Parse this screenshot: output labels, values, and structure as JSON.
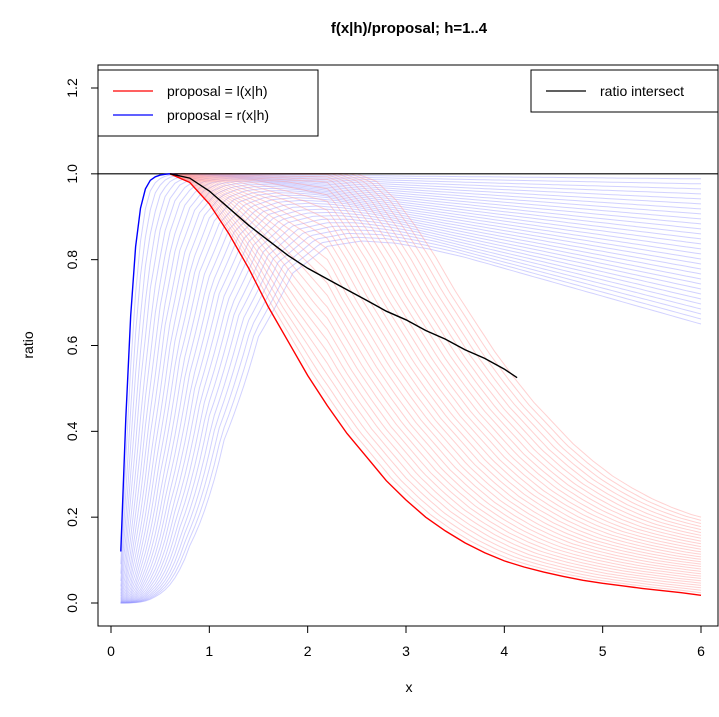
{
  "chart_data": {
    "type": "line",
    "title": "f(x|h)/proposal; h=1..4",
    "xlabel": "x",
    "ylabel": "ratio",
    "xlim": [
      0,
      6
    ],
    "ylim": [
      0,
      1.2
    ],
    "x_ticks": [
      "0",
      "1",
      "2",
      "3",
      "4",
      "5",
      "6"
    ],
    "y_ticks": [
      "0.0",
      "0.2",
      "0.4",
      "0.6",
      "0.8",
      "1.0",
      "1.2"
    ],
    "reference_line_y": 1.0,
    "legend_left": [
      {
        "label": "proposal = l(x|h)",
        "color": "#ff0000"
      },
      {
        "label": "proposal = r(x|h)",
        "color": "#0000ff"
      }
    ],
    "legend_right": [
      {
        "label": "ratio intersect",
        "color": "#000000"
      }
    ],
    "colors": {
      "l_main": "#ff0000",
      "r_main": "#0000ff",
      "l_faint": "#ff9999",
      "r_faint": "#9999ff",
      "intersect": "#000000"
    },
    "series": [
      {
        "name": "proposal = r(x|h)",
        "x": [
          0.1,
          0.15,
          0.2,
          0.25,
          0.3,
          0.35,
          0.4,
          0.45,
          0.5,
          0.55,
          0.6,
          0.65,
          0.7
        ],
        "y": [
          0.12,
          0.43,
          0.67,
          0.83,
          0.92,
          0.965,
          0.985,
          0.993,
          0.997,
          0.999,
          1.0,
          0.998,
          0.995
        ]
      },
      {
        "name": "proposal = l(x|h)",
        "x": [
          0.6,
          0.8,
          1.0,
          1.2,
          1.4,
          1.6,
          1.8,
          2.0,
          2.2,
          2.4,
          2.6,
          2.8,
          3.0,
          3.2,
          3.4,
          3.6,
          3.8,
          4.0,
          4.2,
          4.4,
          4.6,
          4.8,
          5.0,
          5.2,
          5.4,
          5.6,
          5.8,
          6.0
        ],
        "y": [
          1.0,
          0.98,
          0.93,
          0.86,
          0.78,
          0.69,
          0.61,
          0.53,
          0.46,
          0.395,
          0.34,
          0.285,
          0.24,
          0.2,
          0.168,
          0.14,
          0.117,
          0.098,
          0.084,
          0.072,
          0.062,
          0.053,
          0.046,
          0.04,
          0.034,
          0.029,
          0.024,
          0.018
        ]
      },
      {
        "name": "ratio intersect",
        "x": [
          0.6,
          0.8,
          1.0,
          1.2,
          1.4,
          1.6,
          1.8,
          2.0,
          2.2,
          2.4,
          2.6,
          2.8,
          3.0,
          3.2,
          3.4,
          3.6,
          3.8,
          4.0,
          4.13
        ],
        "y": [
          1.0,
          0.99,
          0.96,
          0.92,
          0.88,
          0.845,
          0.81,
          0.78,
          0.755,
          0.73,
          0.705,
          0.68,
          0.66,
          0.635,
          0.615,
          0.59,
          0.57,
          0.545,
          0.525
        ]
      }
    ]
  }
}
